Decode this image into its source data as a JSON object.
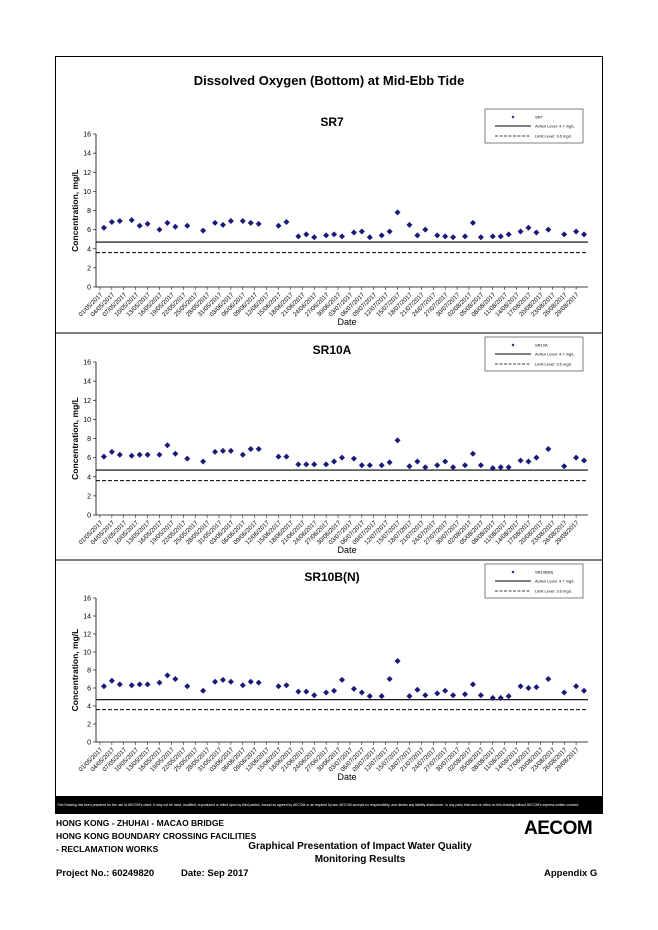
{
  "page": {
    "main_title": "Dissolved Oxygen (Bottom) at Mid-Ebb Tide",
    "disclaimer": "This Drawing has been prepared for the use of AECOM's client. It may not be used, modified, reproduced or relied upon by third parties, except as agreed by AECOM or as required by law. AECOM accepts no responsibility, and denies any liability whatsoever, to any party that uses or relies on this drawing without AECOM's express written consent.",
    "footer": {
      "line1": "HONG KONG - ZHUHAI - MACAO BRIDGE",
      "line2": "HONG KONG BOUNDARY CROSSING FACILITIES",
      "line3": "- RECLAMATION WORKS",
      "presentation_line1": "Graphical Presentation of Impact Water Quality",
      "presentation_line2": "Monitoring Results",
      "project": "Project No.: 60249820",
      "date": "Date: Sep 2017",
      "appendix": "Appendix G",
      "logo": "AECOM"
    }
  },
  "chart_data": [
    {
      "type": "scatter",
      "title": "SR7",
      "xlabel": "Date",
      "ylabel": "Concentration, mg/L",
      "ylim": [
        0,
        16
      ],
      "yticks": [
        0,
        2,
        4,
        6,
        8,
        10,
        12,
        14,
        16
      ],
      "legend": {
        "position": "top-right",
        "entries": [
          "SR7",
          "Action Level: 4.7 mg/L",
          "Limit Level: 3.6 mg/L"
        ]
      },
      "action_level": 4.7,
      "limit_level": 3.6,
      "x": [
        "01/05/2017",
        "04/05/2017",
        "07/05/2017",
        "10/05/2017",
        "13/05/2017",
        "16/05/2017",
        "19/05/2017",
        "22/05/2017",
        "25/05/2017",
        "28/05/2017",
        "31/05/2017",
        "03/06/2017",
        "06/06/2017",
        "09/06/2017",
        "12/06/2017",
        "15/06/2017",
        "18/06/2017",
        "21/06/2017",
        "24/06/2017",
        "27/06/2017",
        "30/06/2017",
        "03/07/2017",
        "06/07/2017",
        "09/07/2017",
        "12/07/2017",
        "15/07/2017",
        "18/07/2017",
        "21/07/2017",
        "24/07/2017",
        "27/07/2017",
        "30/07/2017",
        "02/08/2017",
        "05/08/2017",
        "08/08/2017",
        "11/08/2017",
        "14/08/2017",
        "17/08/2017",
        "20/08/2017",
        "23/08/2017",
        "26/08/2017",
        "29/08/2017"
      ],
      "points": [
        {
          "x": "02/05/2017",
          "y": 6.2
        },
        {
          "x": "04/05/2017",
          "y": 6.8
        },
        {
          "x": "06/05/2017",
          "y": 6.9
        },
        {
          "x": "09/05/2017",
          "y": 7.0
        },
        {
          "x": "11/05/2017",
          "y": 6.4
        },
        {
          "x": "13/05/2017",
          "y": 6.6
        },
        {
          "x": "16/05/2017",
          "y": 6.0
        },
        {
          "x": "18/05/2017",
          "y": 6.7
        },
        {
          "x": "20/05/2017",
          "y": 6.3
        },
        {
          "x": "23/05/2017",
          "y": 6.4
        },
        {
          "x": "27/05/2017",
          "y": 5.9
        },
        {
          "x": "30/05/2017",
          "y": 6.7
        },
        {
          "x": "01/06/2017",
          "y": 6.5
        },
        {
          "x": "03/06/2017",
          "y": 6.9
        },
        {
          "x": "06/06/2017",
          "y": 6.9
        },
        {
          "x": "08/06/2017",
          "y": 6.7
        },
        {
          "x": "10/06/2017",
          "y": 6.6
        },
        {
          "x": "15/06/2017",
          "y": 6.4
        },
        {
          "x": "17/06/2017",
          "y": 6.8
        },
        {
          "x": "20/06/2017",
          "y": 5.3
        },
        {
          "x": "22/06/2017",
          "y": 5.5
        },
        {
          "x": "24/06/2017",
          "y": 5.2
        },
        {
          "x": "27/06/2017",
          "y": 5.4
        },
        {
          "x": "29/06/2017",
          "y": 5.5
        },
        {
          "x": "01/07/2017",
          "y": 5.3
        },
        {
          "x": "04/07/2017",
          "y": 5.7
        },
        {
          "x": "06/07/2017",
          "y": 5.8
        },
        {
          "x": "08/07/2017",
          "y": 5.2
        },
        {
          "x": "11/07/2017",
          "y": 5.4
        },
        {
          "x": "13/07/2017",
          "y": 5.8
        },
        {
          "x": "15/07/2017",
          "y": 7.8
        },
        {
          "x": "18/07/2017",
          "y": 6.5
        },
        {
          "x": "20/07/2017",
          "y": 5.4
        },
        {
          "x": "22/07/2017",
          "y": 6.0
        },
        {
          "x": "25/07/2017",
          "y": 5.4
        },
        {
          "x": "27/07/2017",
          "y": 5.3
        },
        {
          "x": "29/07/2017",
          "y": 5.2
        },
        {
          "x": "01/08/2017",
          "y": 5.3
        },
        {
          "x": "03/08/2017",
          "y": 6.7
        },
        {
          "x": "05/08/2017",
          "y": 5.2
        },
        {
          "x": "08/08/2017",
          "y": 5.3
        },
        {
          "x": "10/08/2017",
          "y": 5.3
        },
        {
          "x": "12/08/2017",
          "y": 5.5
        },
        {
          "x": "15/08/2017",
          "y": 5.8
        },
        {
          "x": "17/08/2017",
          "y": 6.2
        },
        {
          "x": "19/08/2017",
          "y": 5.7
        },
        {
          "x": "22/08/2017",
          "y": 6.0
        },
        {
          "x": "26/08/2017",
          "y": 5.5
        },
        {
          "x": "29/08/2017",
          "y": 5.8
        },
        {
          "x": "31/08/2017",
          "y": 5.5
        }
      ]
    },
    {
      "type": "scatter",
      "title": "SR10A",
      "xlabel": "Date",
      "ylabel": "Concentration, mg/L",
      "ylim": [
        0,
        16
      ],
      "yticks": [
        0,
        2,
        4,
        6,
        8,
        10,
        12,
        14,
        16
      ],
      "legend": {
        "position": "top-right",
        "entries": [
          "SR10A",
          "Action Level: 4.7 mg/L",
          "Limit Level: 3.6 mg/L"
        ]
      },
      "action_level": 4.7,
      "limit_level": 3.6,
      "x": [
        "01/05/2017",
        "04/05/2017",
        "07/05/2017",
        "10/05/2017",
        "13/05/2017",
        "16/05/2017",
        "19/05/2017",
        "22/05/2017",
        "25/05/2017",
        "28/05/2017",
        "31/05/2017",
        "03/06/2017",
        "06/06/2017",
        "09/06/2017",
        "12/06/2017",
        "15/06/2017",
        "18/06/2017",
        "21/06/2017",
        "24/06/2017",
        "27/06/2017",
        "30/06/2017",
        "03/07/2017",
        "06/07/2017",
        "09/07/2017",
        "12/07/2017",
        "15/07/2017",
        "18/07/2017",
        "21/07/2017",
        "24/07/2017",
        "27/07/2017",
        "30/07/2017",
        "02/08/2017",
        "05/08/2017",
        "08/08/2017",
        "11/08/2017",
        "14/08/2017",
        "17/08/2017",
        "20/08/2017",
        "23/08/2017",
        "26/08/2017",
        "29/08/2017"
      ],
      "points": [
        {
          "x": "02/05/2017",
          "y": 6.1
        },
        {
          "x": "04/05/2017",
          "y": 6.6
        },
        {
          "x": "06/05/2017",
          "y": 6.3
        },
        {
          "x": "09/05/2017",
          "y": 6.2
        },
        {
          "x": "11/05/2017",
          "y": 6.3
        },
        {
          "x": "13/05/2017",
          "y": 6.3
        },
        {
          "x": "16/05/2017",
          "y": 6.3
        },
        {
          "x": "18/05/2017",
          "y": 7.3
        },
        {
          "x": "20/05/2017",
          "y": 6.4
        },
        {
          "x": "23/05/2017",
          "y": 5.9
        },
        {
          "x": "27/05/2017",
          "y": 5.6
        },
        {
          "x": "30/05/2017",
          "y": 6.6
        },
        {
          "x": "01/06/2017",
          "y": 6.7
        },
        {
          "x": "03/06/2017",
          "y": 6.7
        },
        {
          "x": "06/06/2017",
          "y": 6.3
        },
        {
          "x": "08/06/2017",
          "y": 6.9
        },
        {
          "x": "10/06/2017",
          "y": 6.9
        },
        {
          "x": "15/06/2017",
          "y": 6.1
        },
        {
          "x": "17/06/2017",
          "y": 6.1
        },
        {
          "x": "20/06/2017",
          "y": 5.3
        },
        {
          "x": "22/06/2017",
          "y": 5.3
        },
        {
          "x": "24/06/2017",
          "y": 5.3
        },
        {
          "x": "27/06/2017",
          "y": 5.3
        },
        {
          "x": "29/06/2017",
          "y": 5.6
        },
        {
          "x": "01/07/2017",
          "y": 6.0
        },
        {
          "x": "04/07/2017",
          "y": 5.9
        },
        {
          "x": "06/07/2017",
          "y": 5.2
        },
        {
          "x": "08/07/2017",
          "y": 5.2
        },
        {
          "x": "11/07/2017",
          "y": 5.2
        },
        {
          "x": "13/07/2017",
          "y": 5.5
        },
        {
          "x": "15/07/2017",
          "y": 7.8
        },
        {
          "x": "18/07/2017",
          "y": 5.1
        },
        {
          "x": "20/07/2017",
          "y": 5.6
        },
        {
          "x": "22/07/2017",
          "y": 5.0
        },
        {
          "x": "25/07/2017",
          "y": 5.2
        },
        {
          "x": "27/07/2017",
          "y": 5.6
        },
        {
          "x": "29/07/2017",
          "y": 5.0
        },
        {
          "x": "01/08/2017",
          "y": 5.2
        },
        {
          "x": "03/08/2017",
          "y": 6.4
        },
        {
          "x": "05/08/2017",
          "y": 5.2
        },
        {
          "x": "08/08/2017",
          "y": 4.9
        },
        {
          "x": "10/08/2017",
          "y": 5.0
        },
        {
          "x": "12/08/2017",
          "y": 5.0
        },
        {
          "x": "15/08/2017",
          "y": 5.7
        },
        {
          "x": "17/08/2017",
          "y": 5.6
        },
        {
          "x": "19/08/2017",
          "y": 6.0
        },
        {
          "x": "22/08/2017",
          "y": 6.9
        },
        {
          "x": "26/08/2017",
          "y": 5.1
        },
        {
          "x": "29/08/2017",
          "y": 6.0
        },
        {
          "x": "31/08/2017",
          "y": 5.7
        }
      ]
    },
    {
      "type": "scatter",
      "title": "SR10B(N)",
      "xlabel": "Date",
      "ylabel": "Concentration, mg/L",
      "ylim": [
        0,
        16
      ],
      "yticks": [
        0,
        2,
        4,
        6,
        8,
        10,
        12,
        14,
        16
      ],
      "legend": {
        "position": "top-right",
        "entries": [
          "SR10B(N)",
          "Action Level: 4.7 mg/L",
          "Limit Level: 3.6 mg/L"
        ]
      },
      "action_level": 4.7,
      "limit_level": 3.6,
      "x": [
        "01/05/2017",
        "04/05/2017",
        "07/05/2017",
        "10/05/2017",
        "13/05/2017",
        "16/05/2017",
        "19/05/2017",
        "22/05/2017",
        "25/05/2017",
        "28/05/2017",
        "31/05/2017",
        "03/06/2017",
        "06/06/2017",
        "09/06/2017",
        "12/06/2017",
        "15/06/2017",
        "18/06/2017",
        "21/06/2017",
        "24/06/2017",
        "27/06/2017",
        "30/06/2017",
        "03/07/2017",
        "06/07/2017",
        "09/07/2017",
        "12/07/2017",
        "15/07/2017",
        "18/07/2017",
        "21/07/2017",
        "24/07/2017",
        "27/07/2017",
        "30/07/2017",
        "02/08/2017",
        "05/08/2017",
        "08/08/2017",
        "11/08/2017",
        "14/08/2017",
        "17/08/2017",
        "20/08/2017",
        "23/08/2017",
        "26/08/2017",
        "29/08/2017"
      ],
      "points": [
        {
          "x": "02/05/2017",
          "y": 6.2
        },
        {
          "x": "04/05/2017",
          "y": 6.8
        },
        {
          "x": "06/05/2017",
          "y": 6.4
        },
        {
          "x": "09/05/2017",
          "y": 6.3
        },
        {
          "x": "11/05/2017",
          "y": 6.4
        },
        {
          "x": "13/05/2017",
          "y": 6.4
        },
        {
          "x": "16/05/2017",
          "y": 6.6
        },
        {
          "x": "18/05/2017",
          "y": 7.4
        },
        {
          "x": "20/05/2017",
          "y": 7.0
        },
        {
          "x": "23/05/2017",
          "y": 6.2
        },
        {
          "x": "27/05/2017",
          "y": 5.7
        },
        {
          "x": "30/05/2017",
          "y": 6.7
        },
        {
          "x": "01/06/2017",
          "y": 6.9
        },
        {
          "x": "03/06/2017",
          "y": 6.7
        },
        {
          "x": "06/06/2017",
          "y": 6.3
        },
        {
          "x": "08/06/2017",
          "y": 6.7
        },
        {
          "x": "10/06/2017",
          "y": 6.6
        },
        {
          "x": "15/06/2017",
          "y": 6.2
        },
        {
          "x": "17/06/2017",
          "y": 6.3
        },
        {
          "x": "20/06/2017",
          "y": 5.6
        },
        {
          "x": "22/06/2017",
          "y": 5.6
        },
        {
          "x": "24/06/2017",
          "y": 5.2
        },
        {
          "x": "27/06/2017",
          "y": 5.5
        },
        {
          "x": "29/06/2017",
          "y": 5.7
        },
        {
          "x": "01/07/2017",
          "y": 6.9
        },
        {
          "x": "04/07/2017",
          "y": 5.9
        },
        {
          "x": "06/07/2017",
          "y": 5.5
        },
        {
          "x": "08/07/2017",
          "y": 5.1
        },
        {
          "x": "11/07/2017",
          "y": 5.1
        },
        {
          "x": "13/07/2017",
          "y": 7.0
        },
        {
          "x": "15/07/2017",
          "y": 9.0
        },
        {
          "x": "18/07/2017",
          "y": 5.1
        },
        {
          "x": "20/07/2017",
          "y": 5.8
        },
        {
          "x": "22/07/2017",
          "y": 5.2
        },
        {
          "x": "25/07/2017",
          "y": 5.4
        },
        {
          "x": "27/07/2017",
          "y": 5.7
        },
        {
          "x": "29/07/2017",
          "y": 5.2
        },
        {
          "x": "01/08/2017",
          "y": 5.3
        },
        {
          "x": "03/08/2017",
          "y": 6.4
        },
        {
          "x": "05/08/2017",
          "y": 5.2
        },
        {
          "x": "08/08/2017",
          "y": 4.9
        },
        {
          "x": "10/08/2017",
          "y": 4.9
        },
        {
          "x": "12/08/2017",
          "y": 5.1
        },
        {
          "x": "15/08/2017",
          "y": 6.2
        },
        {
          "x": "17/08/2017",
          "y": 6.0
        },
        {
          "x": "19/08/2017",
          "y": 6.1
        },
        {
          "x": "22/08/2017",
          "y": 7.0
        },
        {
          "x": "26/08/2017",
          "y": 5.5
        },
        {
          "x": "29/08/2017",
          "y": 6.2
        },
        {
          "x": "31/08/2017",
          "y": 5.7
        }
      ]
    }
  ]
}
